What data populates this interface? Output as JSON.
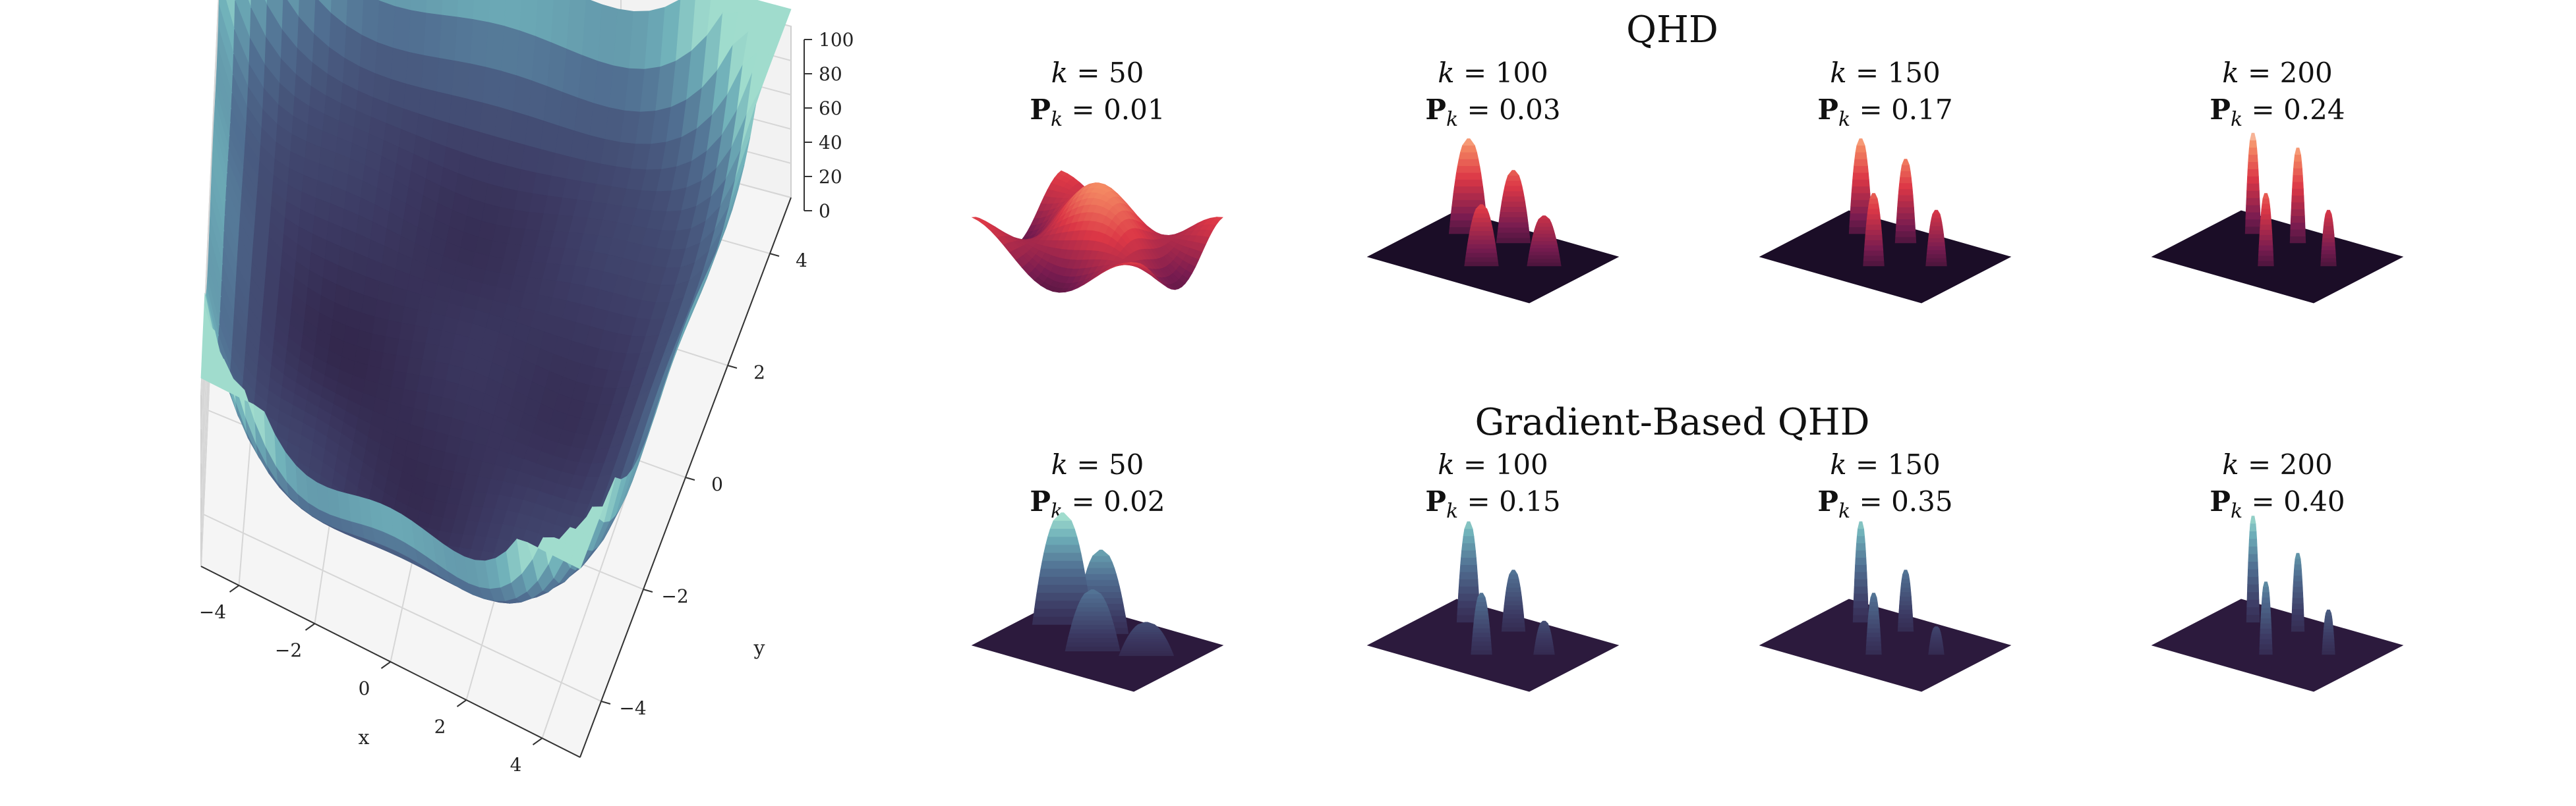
{
  "chart_data": [
    {
      "type": "surface3d",
      "title": "",
      "xlabel": "x",
      "ylabel": "y",
      "zlabel": "",
      "xlim": [
        -5,
        5
      ],
      "ylim": [
        -5,
        5
      ],
      "zlim": [
        0,
        100
      ],
      "x_ticks": [
        "−4",
        "−2",
        "0",
        "2",
        "4"
      ],
      "y_ticks": [
        "−4",
        "−2",
        "0",
        "2",
        "4"
      ],
      "z_ticks": [
        "0",
        "20",
        "40",
        "60",
        "80",
        "100"
      ],
      "grid": true,
      "colormap": "mako",
      "color_low": "#2b1a3a",
      "color_high": "#93d8c8"
    },
    {
      "type": "surface3d-grid",
      "rows": [
        {
          "title": "QHD",
          "colormap": "rocket",
          "panels": [
            {
              "k": "50",
              "p": "0.01"
            },
            {
              "k": "100",
              "p": "0.03"
            },
            {
              "k": "150",
              "p": "0.17"
            },
            {
              "k": "200",
              "p": "0.24"
            }
          ]
        },
        {
          "title": "Gradient-Based QHD",
          "colormap": "mako",
          "panels": [
            {
              "k": "50",
              "p": "0.02"
            },
            {
              "k": "100",
              "p": "0.15"
            },
            {
              "k": "150",
              "p": "0.35"
            },
            {
              "k": "200",
              "p": "0.40"
            }
          ]
        }
      ],
      "k_symbol": "k",
      "p_symbol": "P",
      "p_subscript": "k",
      "equals": " = "
    }
  ]
}
